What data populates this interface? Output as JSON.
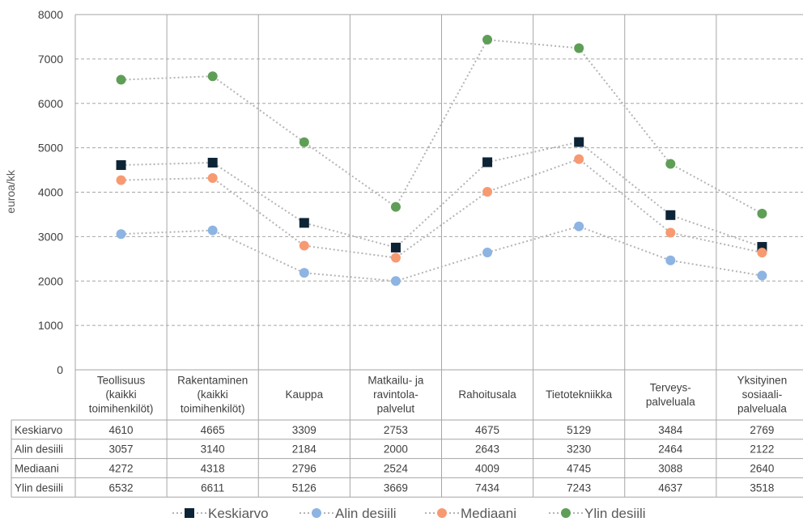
{
  "chart_data": {
    "type": "line",
    "ylabel": "euroa/kk",
    "ylim": [
      0,
      8000
    ],
    "yticks": [
      0,
      1000,
      2000,
      3000,
      4000,
      5000,
      6000,
      7000,
      8000
    ],
    "grid": true,
    "legend_position": "bottom",
    "categories": [
      [
        "Teollisuus",
        "(kaikki",
        "toimihenkilöt)"
      ],
      [
        "Rakentaminen",
        "(kaikki",
        "toimihenkilöt)"
      ],
      [
        "Kauppa"
      ],
      [
        "Matkailu- ja",
        "ravintola-",
        "palvelut"
      ],
      [
        "Rahoitusala"
      ],
      [
        "Tietotekniikka"
      ],
      [
        "Terveys-",
        "palveluala"
      ],
      [
        "Yksityinen",
        "sosiaali-",
        "palveluala"
      ]
    ],
    "series": [
      {
        "name": "Keskiarvo",
        "color": "#0d2436",
        "marker": "square",
        "values": [
          4610,
          4665,
          3309,
          2753,
          4675,
          5129,
          3484,
          2769
        ]
      },
      {
        "name": "Alin desiili",
        "color": "#8db4e2",
        "marker": "circle",
        "values": [
          3057,
          3140,
          2184,
          2000,
          2643,
          3230,
          2464,
          2122
        ]
      },
      {
        "name": "Mediaani",
        "color": "#f79a72",
        "marker": "circle",
        "values": [
          4272,
          4318,
          2796,
          2524,
          4009,
          4745,
          3088,
          2640
        ]
      },
      {
        "name": "Ylin desiili",
        "color": "#5f9e57",
        "marker": "circle",
        "values": [
          6532,
          6611,
          5126,
          3669,
          7434,
          7243,
          4637,
          3518
        ]
      }
    ],
    "line_color": "#b4b4b4"
  }
}
